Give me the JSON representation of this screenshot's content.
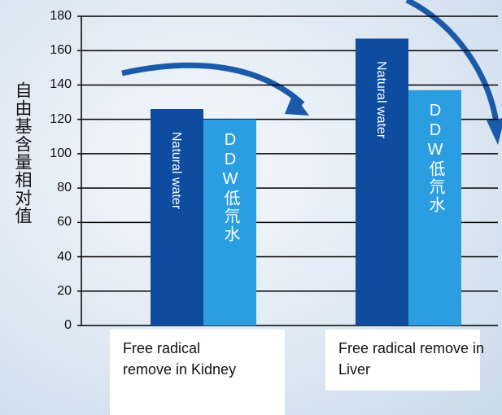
{
  "chart_data": {
    "type": "bar",
    "y_label": "自由基含量相对值",
    "categories": [
      "Free radical remove in Kidney",
      "Free radical remove in Liver"
    ],
    "series": [
      {
        "name": "Natural water",
        "color": "#0d4c9e",
        "values": [
          126,
          167
        ]
      },
      {
        "name": "DDW低氘水",
        "color": "#2a9ee0",
        "values": [
          120,
          137
        ]
      }
    ],
    "ylim": [
      0,
      180
    ],
    "yticks": [
      0,
      20,
      40,
      60,
      80,
      100,
      120,
      140,
      160,
      180
    ],
    "grid": true
  }
}
